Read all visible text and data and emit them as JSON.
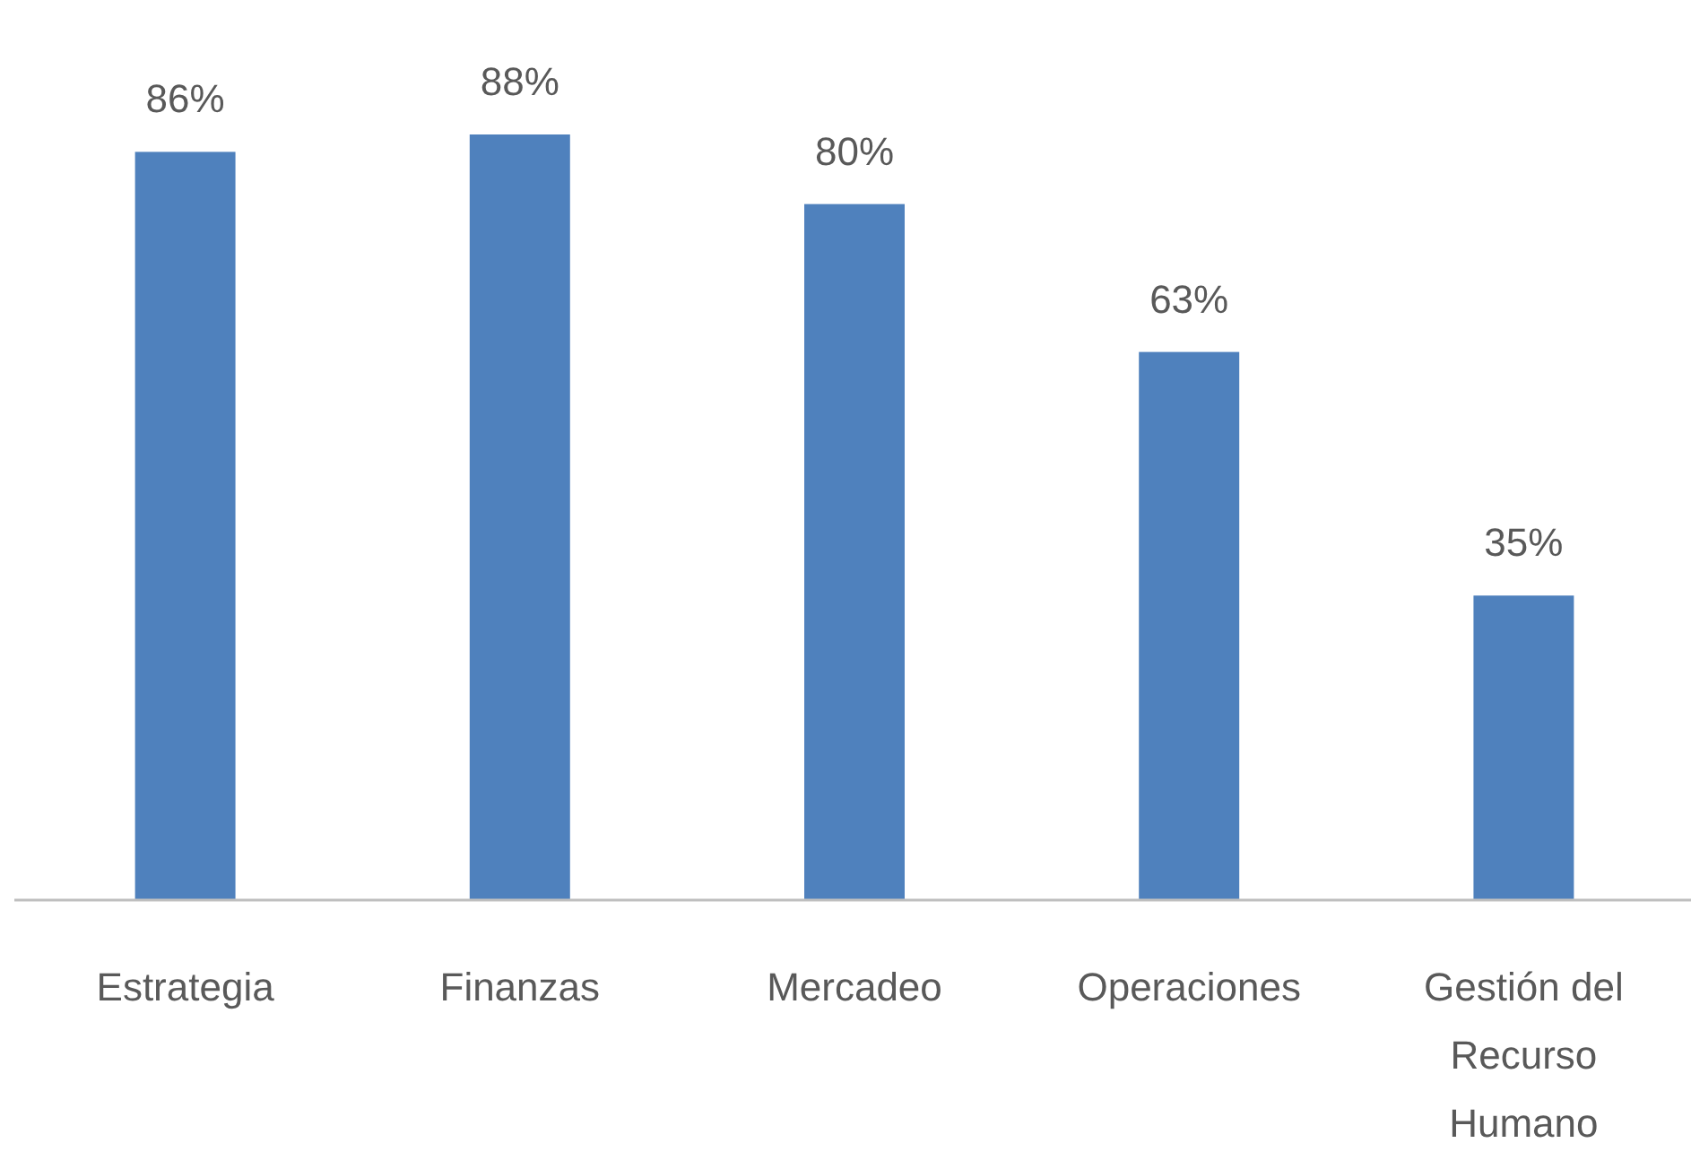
{
  "chart_data": {
    "type": "bar",
    "categories": [
      "Estrategia",
      "Finanzas",
      "Mercadeo",
      "Operaciones",
      "Gestión del Recurso Humano"
    ],
    "values": [
      86,
      88,
      80,
      63,
      35
    ],
    "value_labels": [
      "86%",
      "88%",
      "80%",
      "63%",
      "35%"
    ],
    "color": "#4f81bd"
  }
}
